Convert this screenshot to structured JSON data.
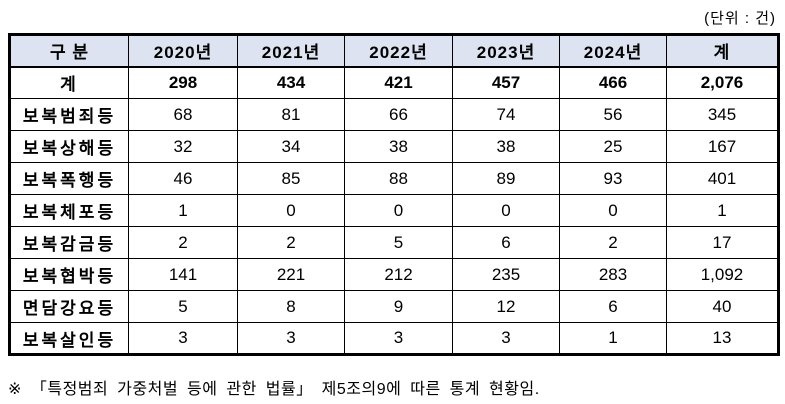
{
  "unit_label": "(단위 : 건)",
  "colors": {
    "header_bg": "#dde3f1",
    "border": "#000000",
    "text": "#000000",
    "page_bg": "#ffffff"
  },
  "table": {
    "columns": [
      "구 분",
      "2020년",
      "2021년",
      "2022년",
      "2023년",
      "2024년",
      "계"
    ],
    "rows": [
      {
        "label": "계",
        "bold": true,
        "values": [
          "298",
          "434",
          "421",
          "457",
          "466",
          "2,076"
        ]
      },
      {
        "label": "보복범죄등",
        "bold": false,
        "values": [
          "68",
          "81",
          "66",
          "74",
          "56",
          "345"
        ]
      },
      {
        "label": "보복상해등",
        "bold": false,
        "values": [
          "32",
          "34",
          "38",
          "38",
          "25",
          "167"
        ]
      },
      {
        "label": "보복폭행등",
        "bold": false,
        "values": [
          "46",
          "85",
          "88",
          "89",
          "93",
          "401"
        ]
      },
      {
        "label": "보복체포등",
        "bold": false,
        "values": [
          "1",
          "0",
          "0",
          "0",
          "0",
          "1"
        ]
      },
      {
        "label": "보복감금등",
        "bold": false,
        "values": [
          "2",
          "2",
          "5",
          "6",
          "2",
          "17"
        ]
      },
      {
        "label": "보복협박등",
        "bold": false,
        "values": [
          "141",
          "221",
          "212",
          "235",
          "283",
          "1,092"
        ]
      },
      {
        "label": "면담강요등",
        "bold": false,
        "values": [
          "5",
          "8",
          "9",
          "12",
          "6",
          "40"
        ]
      },
      {
        "label": "보복살인등",
        "bold": false,
        "values": [
          "3",
          "3",
          "3",
          "3",
          "1",
          "13"
        ]
      }
    ]
  },
  "footnote": "※ 「특정범죄 가중처벌 등에 관한 법률」 제5조의9에 따른 통계 현황임."
}
